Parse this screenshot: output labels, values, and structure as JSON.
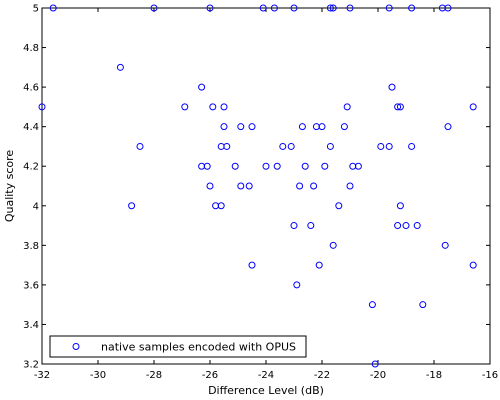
{
  "chart_data": {
    "type": "scatter",
    "title": "",
    "xlabel": "Difference Level (dB)",
    "ylabel": "Quality score",
    "xlim": [
      -32,
      -16
    ],
    "ylim": [
      3.2,
      5
    ],
    "xticks": [
      -32,
      -30,
      -28,
      -26,
      -24,
      -22,
      -20,
      -18,
      -16
    ],
    "yticks": [
      3.2,
      3.4,
      3.6,
      3.8,
      4,
      4.2,
      4.4,
      4.6,
      4.8,
      5
    ],
    "grid": false,
    "legend_position": "bottom-left",
    "marker_color": "#0000ff",
    "series": [
      {
        "name": "native samples encoded with OPUS",
        "points": [
          [
            -31.6,
            5.0
          ],
          [
            -28.0,
            5.0
          ],
          [
            -26.0,
            5.0
          ],
          [
            -24.1,
            5.0
          ],
          [
            -23.7,
            5.0
          ],
          [
            -23.0,
            5.0
          ],
          [
            -21.7,
            5.0
          ],
          [
            -21.6,
            5.0
          ],
          [
            -21.0,
            5.0
          ],
          [
            -19.6,
            5.0
          ],
          [
            -18.8,
            5.0
          ],
          [
            -17.7,
            5.0
          ],
          [
            -17.5,
            5.0
          ],
          [
            -32.0,
            4.5
          ],
          [
            -29.2,
            4.7
          ],
          [
            -28.5,
            4.3
          ],
          [
            -28.8,
            4.0
          ],
          [
            -26.9,
            4.5
          ],
          [
            -26.3,
            4.6
          ],
          [
            -26.3,
            4.2
          ],
          [
            -26.1,
            4.2
          ],
          [
            -26.0,
            4.1
          ],
          [
            -25.9,
            4.5
          ],
          [
            -25.8,
            4.0
          ],
          [
            -25.6,
            4.0
          ],
          [
            -25.6,
            4.3
          ],
          [
            -25.5,
            4.5
          ],
          [
            -25.5,
            4.4
          ],
          [
            -25.4,
            4.3
          ],
          [
            -25.1,
            4.2
          ],
          [
            -24.9,
            4.1
          ],
          [
            -24.9,
            4.4
          ],
          [
            -24.6,
            4.1
          ],
          [
            -24.5,
            4.4
          ],
          [
            -24.5,
            3.7
          ],
          [
            -24.0,
            4.2
          ],
          [
            -23.6,
            4.2
          ],
          [
            -23.4,
            4.3
          ],
          [
            -23.1,
            4.3
          ],
          [
            -23.0,
            3.9
          ],
          [
            -22.9,
            3.6
          ],
          [
            -22.8,
            4.1
          ],
          [
            -22.7,
            4.4
          ],
          [
            -22.6,
            4.2
          ],
          [
            -22.4,
            3.9
          ],
          [
            -22.3,
            4.1
          ],
          [
            -22.2,
            4.4
          ],
          [
            -22.1,
            3.7
          ],
          [
            -22.0,
            4.4
          ],
          [
            -21.9,
            4.2
          ],
          [
            -21.7,
            4.3
          ],
          [
            -21.6,
            3.8
          ],
          [
            -21.4,
            4.0
          ],
          [
            -21.2,
            4.4
          ],
          [
            -21.1,
            4.5
          ],
          [
            -21.0,
            4.1
          ],
          [
            -20.9,
            4.2
          ],
          [
            -20.7,
            4.2
          ],
          [
            -20.2,
            3.5
          ],
          [
            -20.1,
            3.2
          ],
          [
            -19.9,
            4.3
          ],
          [
            -19.6,
            4.3
          ],
          [
            -19.5,
            4.6
          ],
          [
            -19.3,
            4.5
          ],
          [
            -19.3,
            3.9
          ],
          [
            -19.2,
            4.5
          ],
          [
            -19.2,
            4.0
          ],
          [
            -19.0,
            3.9
          ],
          [
            -18.8,
            4.3
          ],
          [
            -18.6,
            3.9
          ],
          [
            -18.4,
            3.5
          ],
          [
            -17.6,
            3.8
          ],
          [
            -17.5,
            4.4
          ],
          [
            -16.6,
            4.5
          ],
          [
            -16.6,
            3.7
          ]
        ]
      }
    ]
  }
}
